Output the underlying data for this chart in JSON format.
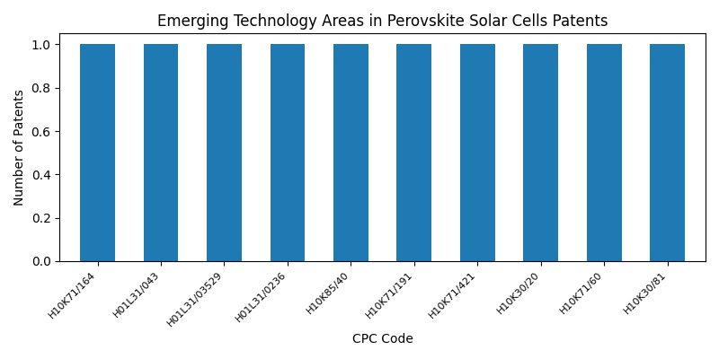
{
  "title": "Emerging Technology Areas in Perovskite Solar Cells Patents",
  "xlabel": "CPC Code",
  "ylabel": "Number of Patents",
  "categories": [
    "H10K71/164",
    "H01L31/043",
    "H01L31/03529",
    "H01L31/0236",
    "H10K85/40",
    "H10K71/191",
    "H10K71/421",
    "H10K30/20",
    "H10K71/60",
    "H10K30/81"
  ],
  "values": [
    1,
    1,
    1,
    1,
    1,
    1,
    1,
    1,
    1,
    1
  ],
  "bar_color": "#1f7ab4",
  "ylim": [
    0,
    1.05
  ],
  "yticks": [
    0.0,
    0.2,
    0.4,
    0.6,
    0.8,
    1.0
  ],
  "bar_width": 0.55,
  "figsize": [
    8.0,
    4.0
  ],
  "dpi": 100,
  "title_fontsize": 12,
  "label_fontsize": 10,
  "tick_fontsize": 8
}
